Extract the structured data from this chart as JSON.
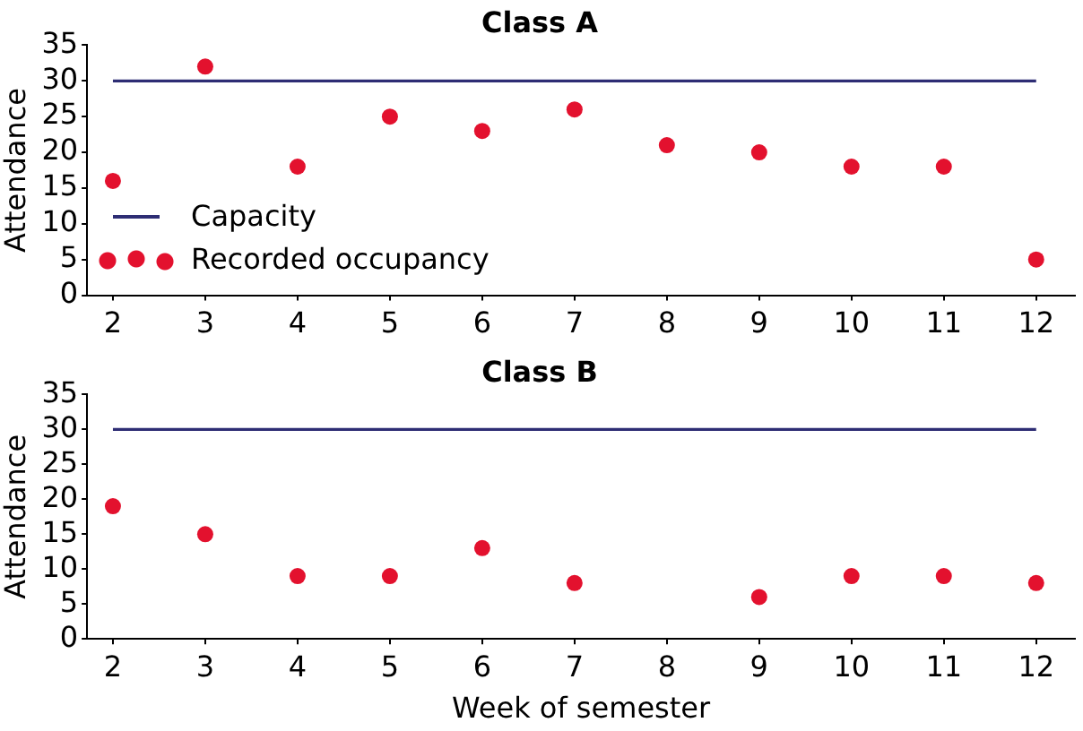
{
  "chart_data": [
    {
      "type": "scatter",
      "title": "Class A",
      "ylabel": "Attendance",
      "x": [
        2,
        3,
        4,
        5,
        6,
        7,
        8,
        9,
        10,
        11,
        12
      ],
      "xlim": [
        1.72,
        12.42
      ],
      "xticks": [
        2,
        3,
        4,
        5,
        6,
        7,
        8,
        9,
        10,
        11,
        12
      ],
      "ylim": [
        0,
        35
      ],
      "yticks": [
        0,
        5,
        10,
        15,
        20,
        25,
        30,
        35
      ],
      "grid": false,
      "legend": "bottom left",
      "series": [
        {
          "name": "Capacity",
          "type": "line",
          "marker": "none",
          "color": "#2e2d74",
          "values": [
            30,
            30,
            30,
            30,
            30,
            30,
            30,
            30,
            30,
            30,
            30
          ]
        },
        {
          "name": "Recorded occupancy",
          "marker": "circle",
          "color": "#e3112e",
          "values": [
            16,
            32,
            18,
            25,
            23,
            26,
            21,
            20,
            18,
            18,
            5
          ]
        }
      ]
    },
    {
      "type": "scatter",
      "title": "Class B",
      "ylabel": "Attendance",
      "xlabel": "Week of semester",
      "x": [
        2,
        3,
        4,
        5,
        6,
        7,
        8,
        9,
        10,
        11,
        12
      ],
      "xlim": [
        1.72,
        12.42
      ],
      "xticks": [
        2,
        3,
        4,
        5,
        6,
        7,
        8,
        9,
        10,
        11,
        12
      ],
      "ylim": [
        0,
        35
      ],
      "yticks": [
        0,
        5,
        10,
        15,
        20,
        25,
        30,
        35
      ],
      "grid": false,
      "series": [
        {
          "type": "line",
          "marker": "none",
          "color": "#2e2d74",
          "values": [
            30,
            30,
            30,
            30,
            30,
            30,
            30,
            30,
            30,
            30,
            30
          ]
        },
        {
          "marker": "circle",
          "color": "#e3112e",
          "values": [
            19,
            15,
            9,
            9,
            13,
            8,
            null,
            6,
            9,
            9,
            8
          ]
        }
      ]
    }
  ]
}
